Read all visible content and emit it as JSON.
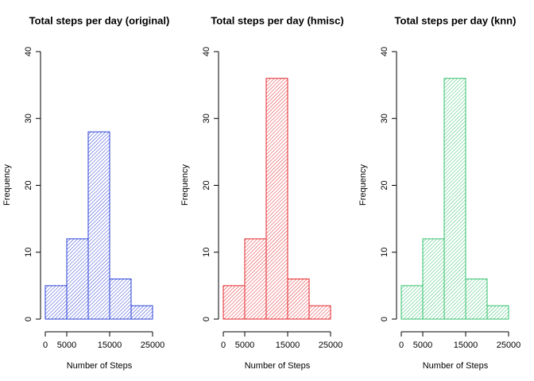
{
  "chart_data": [
    {
      "type": "histogram",
      "title": "Total steps per day (original)",
      "xlabel": "Number of Steps",
      "ylabel": "Frequency",
      "bins": [
        0,
        5000,
        10000,
        15000,
        20000,
        25000
      ],
      "values": [
        5,
        12,
        28,
        6,
        2
      ],
      "color": "#2b40d6",
      "xlim": [
        0,
        25000
      ],
      "xticks": [
        0,
        5000,
        15000,
        25000
      ],
      "ylim": [
        0,
        40
      ],
      "yticks": [
        0,
        10,
        20,
        30,
        40
      ]
    },
    {
      "type": "histogram",
      "title": "Total steps per day (hmisc)",
      "xlabel": "Number of Steps",
      "ylabel": "Frequency",
      "bins": [
        0,
        5000,
        10000,
        15000,
        20000,
        25000
      ],
      "values": [
        5,
        12,
        36,
        6,
        2
      ],
      "color": "#e4262b",
      "xlim": [
        0,
        25000
      ],
      "xticks": [
        0,
        5000,
        15000,
        25000
      ],
      "ylim": [
        0,
        40
      ],
      "yticks": [
        0,
        10,
        20,
        30,
        40
      ]
    },
    {
      "type": "histogram",
      "title": "Total steps per day (knn)",
      "xlabel": "Number of Steps",
      "ylabel": "Frequency",
      "bins": [
        0,
        5000,
        10000,
        15000,
        20000,
        25000
      ],
      "values": [
        5,
        12,
        36,
        6,
        2
      ],
      "color": "#33c06c",
      "xlim": [
        0,
        25000
      ],
      "xticks": [
        0,
        5000,
        15000,
        25000
      ],
      "ylim": [
        0,
        40
      ],
      "yticks": [
        0,
        10,
        20,
        30,
        40
      ]
    }
  ]
}
